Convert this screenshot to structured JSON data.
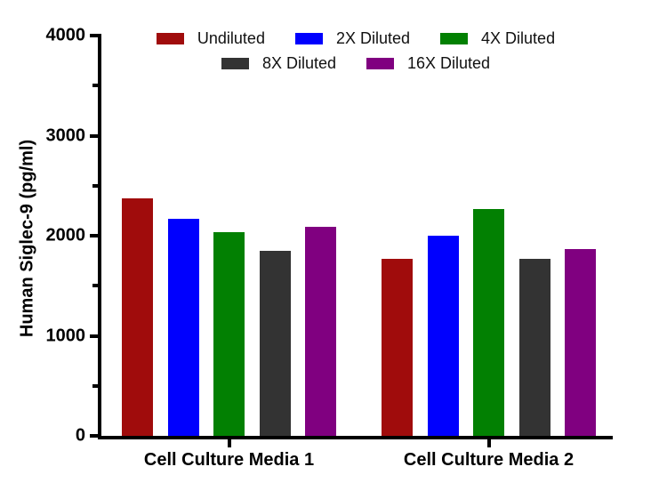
{
  "figure": {
    "background": "#FFFFFF",
    "axis_color": "#000000"
  },
  "chart_data": {
    "type": "bar",
    "title": "",
    "ylabel": "Human Siglec-9 (pg/ml)",
    "xlabel": "",
    "categories": [
      "Cell Culture Media 1",
      "Cell Culture Media 2"
    ],
    "series": [
      {
        "name": "Undiluted",
        "color": "#A00C0C",
        "values": [
          2370,
          1770
        ]
      },
      {
        "name": "2X Diluted",
        "color": "#0000FE",
        "values": [
          2170,
          2000
        ]
      },
      {
        "name": "4X Diluted",
        "color": "#028002",
        "values": [
          2040,
          2270
        ]
      },
      {
        "name": "8X Diluted",
        "color": "#333333",
        "values": [
          1850,
          1770
        ]
      },
      {
        "name": "16X Diluted",
        "color": "#800080",
        "values": [
          2090,
          1870
        ]
      }
    ],
    "ylim": [
      0,
      4000
    ],
    "y_major_step": 1000,
    "y_minor_step": 500,
    "y_tick_labels": [
      "0",
      "1000",
      "2000",
      "3000",
      "4000"
    ],
    "grid": false,
    "legend_position": "top",
    "legend_rows": [
      [
        "Undiluted",
        "2X Diluted",
        "4X Diluted"
      ],
      [
        "8X Diluted",
        "16X Diluted"
      ]
    ]
  }
}
